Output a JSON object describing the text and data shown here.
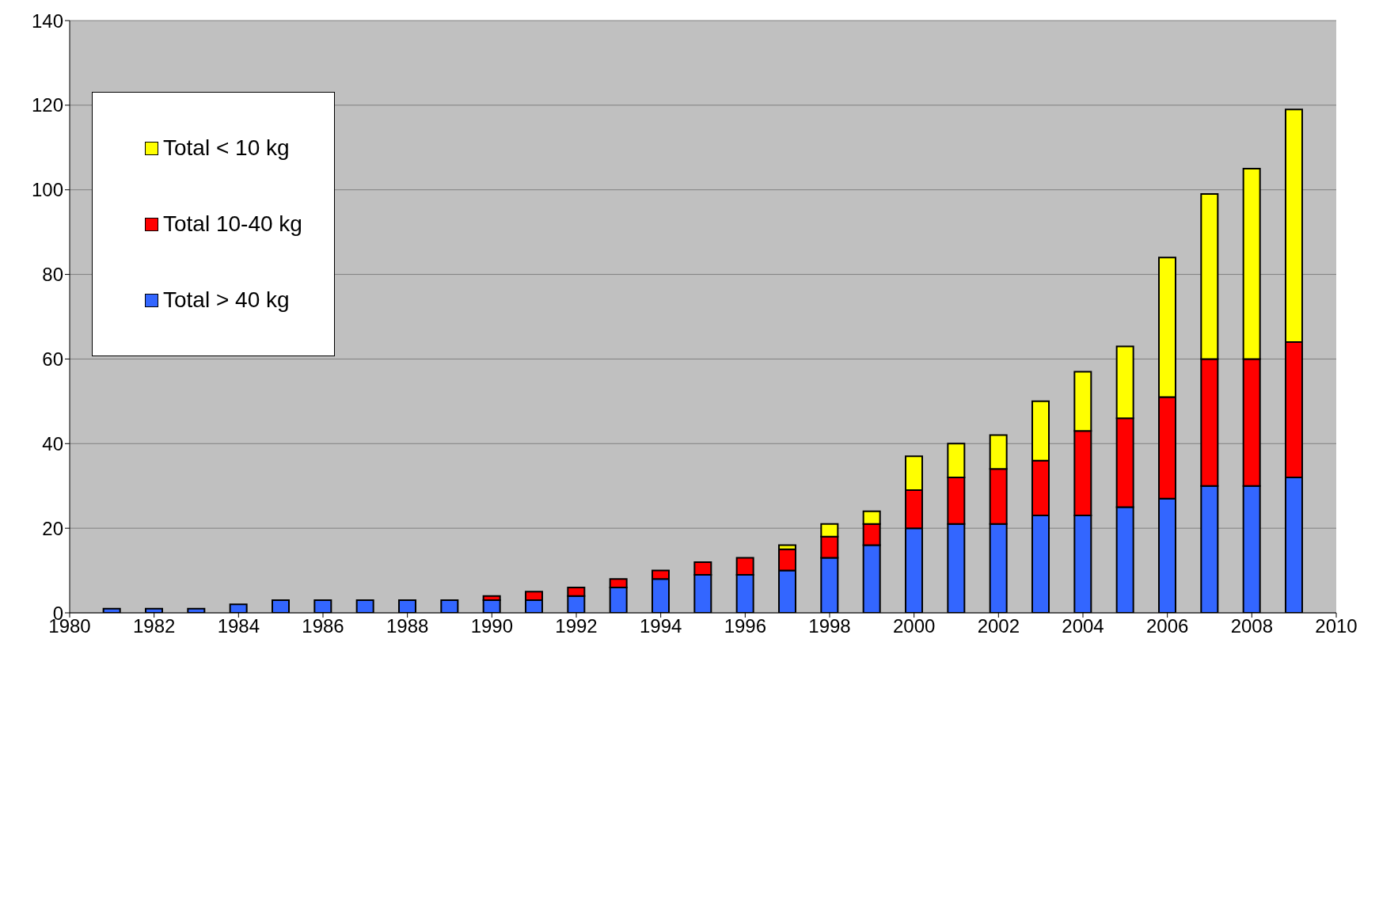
{
  "chart_data": {
    "type": "bar",
    "stacked": true,
    "x": [
      1981,
      1982,
      1983,
      1984,
      1985,
      1986,
      1987,
      1988,
      1989,
      1990,
      1991,
      1992,
      1993,
      1994,
      1995,
      1996,
      1997,
      1998,
      1999,
      2000,
      2001,
      2002,
      2003,
      2004,
      2005,
      2006,
      2007,
      2008,
      2009
    ],
    "series": [
      {
        "name": "Total > 40 kg",
        "color": "#3366ff",
        "values": [
          1,
          1,
          1,
          2,
          3,
          3,
          3,
          3,
          3,
          3,
          3,
          4,
          6,
          8,
          9,
          9,
          10,
          13,
          16,
          20,
          21,
          21,
          23,
          23,
          25,
          27,
          30,
          30,
          32
        ]
      },
      {
        "name": "Total 10-40 kg",
        "color": "#ff0000",
        "values": [
          null,
          null,
          null,
          null,
          null,
          null,
          null,
          null,
          null,
          1,
          2,
          2,
          2,
          2,
          3,
          4,
          5,
          5,
          5,
          9,
          11,
          13,
          13,
          20,
          21,
          24,
          30,
          30,
          32
        ]
      },
      {
        "name": "Total < 10 kg",
        "color": "#ffff00",
        "values": [
          null,
          null,
          null,
          null,
          null,
          null,
          null,
          null,
          null,
          null,
          null,
          null,
          null,
          null,
          null,
          null,
          1,
          3,
          3,
          8,
          8,
          8,
          14,
          14,
          17,
          33,
          39,
          45,
          55
        ]
      }
    ],
    "xlim": [
      1980,
      2010
    ],
    "xticks": [
      1980,
      1982,
      1984,
      1986,
      1988,
      1990,
      1992,
      1994,
      1996,
      1998,
      2000,
      2002,
      2004,
      2006,
      2008,
      2010
    ],
    "ylim": [
      0,
      140
    ],
    "yticks": [
      0,
      20,
      40,
      60,
      80,
      100,
      120,
      140
    ],
    "grid": "y",
    "legend": "top left"
  }
}
